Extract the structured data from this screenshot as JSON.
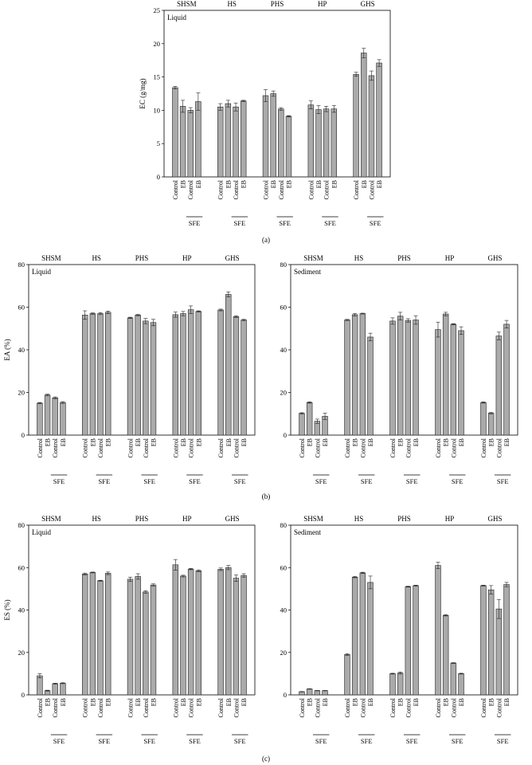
{
  "chart_data": [
    {
      "type": "bar",
      "panel": "(a)",
      "phase_label": "Liquid",
      "ylabel": "EC (g/mg)",
      "ylim": [
        0,
        25
      ],
      "yticks": [
        "0",
        "5",
        "10",
        "15",
        "20",
        "25"
      ],
      "groups": [
        "SHSM",
        "HS",
        "PHS",
        "HP",
        "GHS"
      ],
      "categories": [
        "Control",
        "EB",
        "Control",
        "EB"
      ],
      "bracket_label": "SFE",
      "values": [
        [
          13.4,
          10.6,
          10.0,
          11.3
        ],
        [
          10.5,
          11.0,
          10.5,
          11.4
        ],
        [
          12.2,
          12.5,
          10.2,
          9.1
        ],
        [
          10.8,
          10.1,
          10.2,
          10.2
        ],
        [
          15.4,
          18.6,
          15.2,
          17.1
        ]
      ],
      "errors": [
        [
          0.2,
          0.9,
          0.4,
          1.3
        ],
        [
          0.5,
          0.5,
          0.6,
          0.1
        ],
        [
          0.9,
          0.4,
          0.2,
          0.1
        ],
        [
          0.6,
          0.6,
          0.4,
          0.5
        ],
        [
          0.3,
          0.7,
          0.7,
          0.5
        ]
      ]
    },
    {
      "type": "bar",
      "panel": "(b)",
      "phase_label": "Liquid",
      "ylabel": "EA (%)",
      "ylim": [
        0,
        80
      ],
      "yticks": [
        "0",
        "20",
        "40",
        "60",
        "80"
      ],
      "groups": [
        "SHSM",
        "HS",
        "PHS",
        "HP",
        "GHS"
      ],
      "categories": [
        "Control",
        "EB",
        "Control",
        "EB"
      ],
      "bracket_label": "SFE",
      "values": [
        [
          15.0,
          18.8,
          17.5,
          15.3
        ],
        [
          56.3,
          57.0,
          57.0,
          57.6
        ],
        [
          55.0,
          56.3,
          53.5,
          52.8
        ],
        [
          56.5,
          57.0,
          58.8,
          58.0
        ],
        [
          58.7,
          66.0,
          55.6,
          54.0
        ]
      ],
      "errors": [
        [
          0.3,
          0.4,
          0.4,
          0.4
        ],
        [
          2.0,
          0.3,
          0.5,
          0.6
        ],
        [
          0.3,
          0.3,
          1.2,
          1.5
        ],
        [
          1.2,
          1.0,
          1.8,
          0.3
        ],
        [
          0.4,
          1.2,
          0.4,
          0.3
        ]
      ]
    },
    {
      "type": "bar",
      "panel": "(b)",
      "phase_label": "Sediment",
      "ylabel": "",
      "ylim": [
        0,
        80
      ],
      "yticks": [
        "0",
        "20",
        "40",
        "60",
        "80"
      ],
      "groups": [
        "SHSM",
        "HS",
        "PHS",
        "HP",
        "GHS"
      ],
      "categories": [
        "Control",
        "EB",
        "Control",
        "EB"
      ],
      "bracket_label": "SFE",
      "values": [
        [
          10.2,
          15.3,
          6.5,
          8.8
        ],
        [
          54.0,
          56.5,
          57.0,
          46.0
        ],
        [
          53.5,
          55.8,
          53.8,
          54.0
        ],
        [
          49.5,
          56.8,
          52.0,
          49.0
        ],
        [
          15.3,
          10.3,
          46.5,
          52.0
        ]
      ],
      "errors": [
        [
          0.3,
          0.3,
          1.0,
          1.5
        ],
        [
          0.3,
          0.6,
          0.2,
          1.8
        ],
        [
          1.5,
          1.8,
          0.8,
          2.0
        ],
        [
          3.5,
          0.8,
          0.3,
          1.8
        ],
        [
          0.3,
          0.3,
          1.8,
          1.8
        ]
      ]
    },
    {
      "type": "bar",
      "panel": "(c)",
      "phase_label": "Liquid",
      "ylabel": "ES (%)",
      "ylim": [
        0,
        80
      ],
      "yticks": [
        "0",
        "20",
        "40",
        "60",
        "80"
      ],
      "groups": [
        "SHSM",
        "HS",
        "PHS",
        "HP",
        "GHS"
      ],
      "categories": [
        "Control",
        "EB",
        "Control",
        "EB"
      ],
      "bracket_label": "SFE",
      "values": [
        [
          9.0,
          2.0,
          5.3,
          5.5
        ],
        [
          57.0,
          57.7,
          53.8,
          57.3
        ],
        [
          54.5,
          55.8,
          48.5,
          51.8
        ],
        [
          61.3,
          56.0,
          59.3,
          58.5
        ],
        [
          59.2,
          60.0,
          55.0,
          56.3
        ]
      ],
      "errors": [
        [
          1.0,
          0.2,
          0.2,
          0.2
        ],
        [
          0.4,
          0.2,
          0.2,
          0.6
        ],
        [
          1.0,
          1.3,
          0.6,
          0.5
        ],
        [
          2.5,
          0.4,
          0.3,
          0.4
        ],
        [
          0.6,
          1.0,
          1.5,
          0.8
        ]
      ]
    },
    {
      "type": "bar",
      "panel": "(c)",
      "phase_label": "Sediment",
      "ylabel": "",
      "ylim": [
        0,
        80
      ],
      "yticks": [
        "0",
        "20",
        "40",
        "60",
        "80"
      ],
      "groups": [
        "SHSM",
        "HS",
        "PHS",
        "HP",
        "GHS"
      ],
      "categories": [
        "Control",
        "EB",
        "Control",
        "EB"
      ],
      "bracket_label": "SFE",
      "values": [
        [
          1.5,
          2.8,
          2.0,
          2.0
        ],
        [
          19.0,
          55.5,
          57.5,
          53.0
        ],
        [
          10.0,
          10.3,
          51.0,
          51.5
        ],
        [
          61.0,
          37.5,
          15.0,
          10.0
        ],
        [
          51.5,
          49.5,
          40.5,
          52.0
        ]
      ],
      "errors": [
        [
          0.1,
          0.1,
          0.1,
          0.1
        ],
        [
          0.4,
          0.3,
          0.3,
          3.0
        ],
        [
          0.2,
          0.5,
          0.2,
          0.2
        ],
        [
          1.5,
          0.3,
          0.2,
          0.2
        ],
        [
          0.2,
          2.0,
          4.5,
          1.0
        ]
      ]
    }
  ],
  "panel_labels": [
    "(a)",
    "(b)",
    "(c)"
  ],
  "colors": {
    "bar_fill": "#aaaaaa",
    "bar_stroke": "#222222",
    "axis": "#000000"
  }
}
